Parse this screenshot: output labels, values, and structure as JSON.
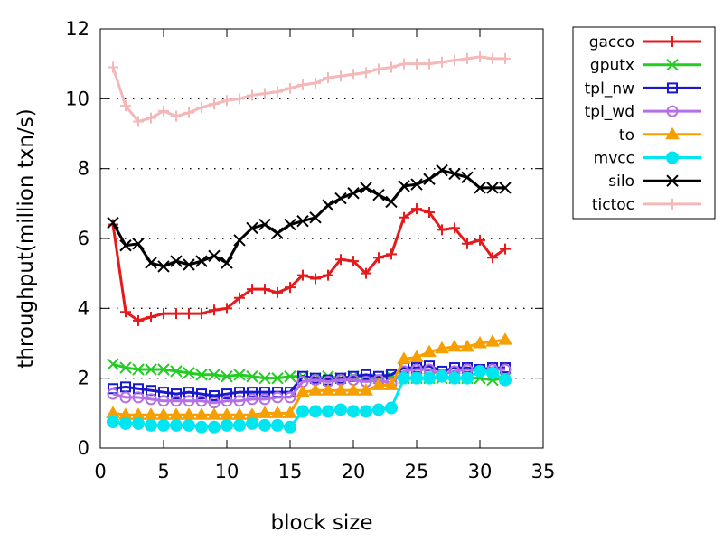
{
  "chart_data": {
    "type": "line",
    "title": "",
    "xlabel": "block size",
    "ylabel": "throughput(million txn/s)",
    "xlim": [
      0,
      35
    ],
    "ylim": [
      0,
      12
    ],
    "xticks": [
      0,
      5,
      10,
      15,
      20,
      25,
      30,
      35
    ],
    "yticks": [
      0,
      2,
      4,
      6,
      8,
      10,
      12
    ],
    "grid": "dotted",
    "legend_position": "right",
    "x": [
      1,
      2,
      3,
      4,
      5,
      6,
      7,
      8,
      9,
      10,
      11,
      12,
      13,
      14,
      15,
      16,
      17,
      18,
      19,
      20,
      21,
      22,
      23,
      24,
      25,
      26,
      27,
      28,
      29,
      30,
      31,
      32
    ],
    "series": [
      {
        "name": "gacco",
        "color": "#e41a1c",
        "marker": "plus",
        "values": [
          6.4,
          3.9,
          3.65,
          3.75,
          3.85,
          3.85,
          3.85,
          3.85,
          3.95,
          4.0,
          4.3,
          4.55,
          4.55,
          4.45,
          4.6,
          4.95,
          4.85,
          4.95,
          5.4,
          5.35,
          5.0,
          5.45,
          5.55,
          6.6,
          6.85,
          6.75,
          6.25,
          6.3,
          5.85,
          5.95,
          5.45,
          5.7
        ]
      },
      {
        "name": "gputx",
        "color": "#22cc22",
        "marker": "x",
        "values": [
          2.4,
          2.3,
          2.25,
          2.25,
          2.25,
          2.2,
          2.15,
          2.1,
          2.1,
          2.05,
          2.1,
          2.05,
          2.0,
          2.0,
          2.05,
          2.05,
          2.0,
          2.05,
          2.0,
          2.05,
          2.0,
          2.0,
          2.05,
          2.0,
          2.0,
          2.0,
          2.0,
          2.0,
          2.0,
          2.0,
          1.95,
          2.0
        ]
      },
      {
        "name": "tpl_nw",
        "color": "#1818cc",
        "marker": "square",
        "values": [
          1.7,
          1.75,
          1.7,
          1.65,
          1.6,
          1.55,
          1.6,
          1.55,
          1.5,
          1.55,
          1.6,
          1.6,
          1.6,
          1.6,
          1.6,
          2.05,
          2.0,
          1.95,
          2.0,
          2.05,
          2.1,
          2.05,
          2.1,
          2.3,
          2.3,
          2.35,
          2.2,
          2.3,
          2.3,
          2.25,
          2.3,
          2.3
        ]
      },
      {
        "name": "tpl_wd",
        "color": "#b46ee6",
        "marker": "circle",
        "values": [
          1.55,
          1.45,
          1.45,
          1.4,
          1.35,
          1.35,
          1.35,
          1.35,
          1.3,
          1.35,
          1.35,
          1.4,
          1.4,
          1.45,
          1.45,
          1.9,
          1.95,
          1.9,
          1.95,
          1.95,
          1.9,
          1.95,
          1.85,
          2.2,
          2.25,
          2.25,
          2.1,
          2.2,
          2.25,
          2.2,
          2.25,
          2.25
        ]
      },
      {
        "name": "to",
        "color": "#f5a000",
        "marker": "triangle",
        "values": [
          1.0,
          0.95,
          0.95,
          0.95,
          0.95,
          0.95,
          0.95,
          0.95,
          0.95,
          0.95,
          0.95,
          0.95,
          1.0,
          1.0,
          1.0,
          1.6,
          1.65,
          1.65,
          1.65,
          1.65,
          1.65,
          1.8,
          1.8,
          2.55,
          2.6,
          2.75,
          2.85,
          2.9,
          2.9,
          3.0,
          3.05,
          3.1
        ]
      },
      {
        "name": "mvcc",
        "color": "#00e6f0",
        "marker": "filled-circle",
        "values": [
          0.75,
          0.7,
          0.7,
          0.65,
          0.65,
          0.65,
          0.65,
          0.6,
          0.6,
          0.65,
          0.65,
          0.7,
          0.65,
          0.65,
          0.6,
          1.05,
          1.05,
          1.05,
          1.1,
          1.05,
          1.05,
          1.1,
          1.15,
          2.0,
          2.0,
          2.0,
          2.05,
          2.0,
          2.0,
          2.2,
          2.15,
          1.95
        ]
      },
      {
        "name": "silo",
        "color": "#000000",
        "marker": "x",
        "values": [
          6.45,
          5.8,
          5.85,
          5.3,
          5.2,
          5.35,
          5.25,
          5.35,
          5.5,
          5.3,
          5.95,
          6.3,
          6.4,
          6.15,
          6.4,
          6.5,
          6.6,
          6.95,
          7.15,
          7.3,
          7.45,
          7.25,
          7.05,
          7.5,
          7.55,
          7.7,
          7.95,
          7.85,
          7.75,
          7.45,
          7.45,
          7.45
        ]
      },
      {
        "name": "tictoc",
        "color": "#f5b8b8",
        "marker": "plus",
        "values": [
          10.9,
          9.8,
          9.35,
          9.45,
          9.65,
          9.5,
          9.6,
          9.75,
          9.85,
          9.95,
          10.0,
          10.1,
          10.15,
          10.2,
          10.3,
          10.4,
          10.45,
          10.6,
          10.65,
          10.7,
          10.75,
          10.85,
          10.9,
          11.0,
          11.0,
          11.0,
          11.05,
          11.1,
          11.15,
          11.2,
          11.15,
          11.15
        ]
      }
    ]
  }
}
